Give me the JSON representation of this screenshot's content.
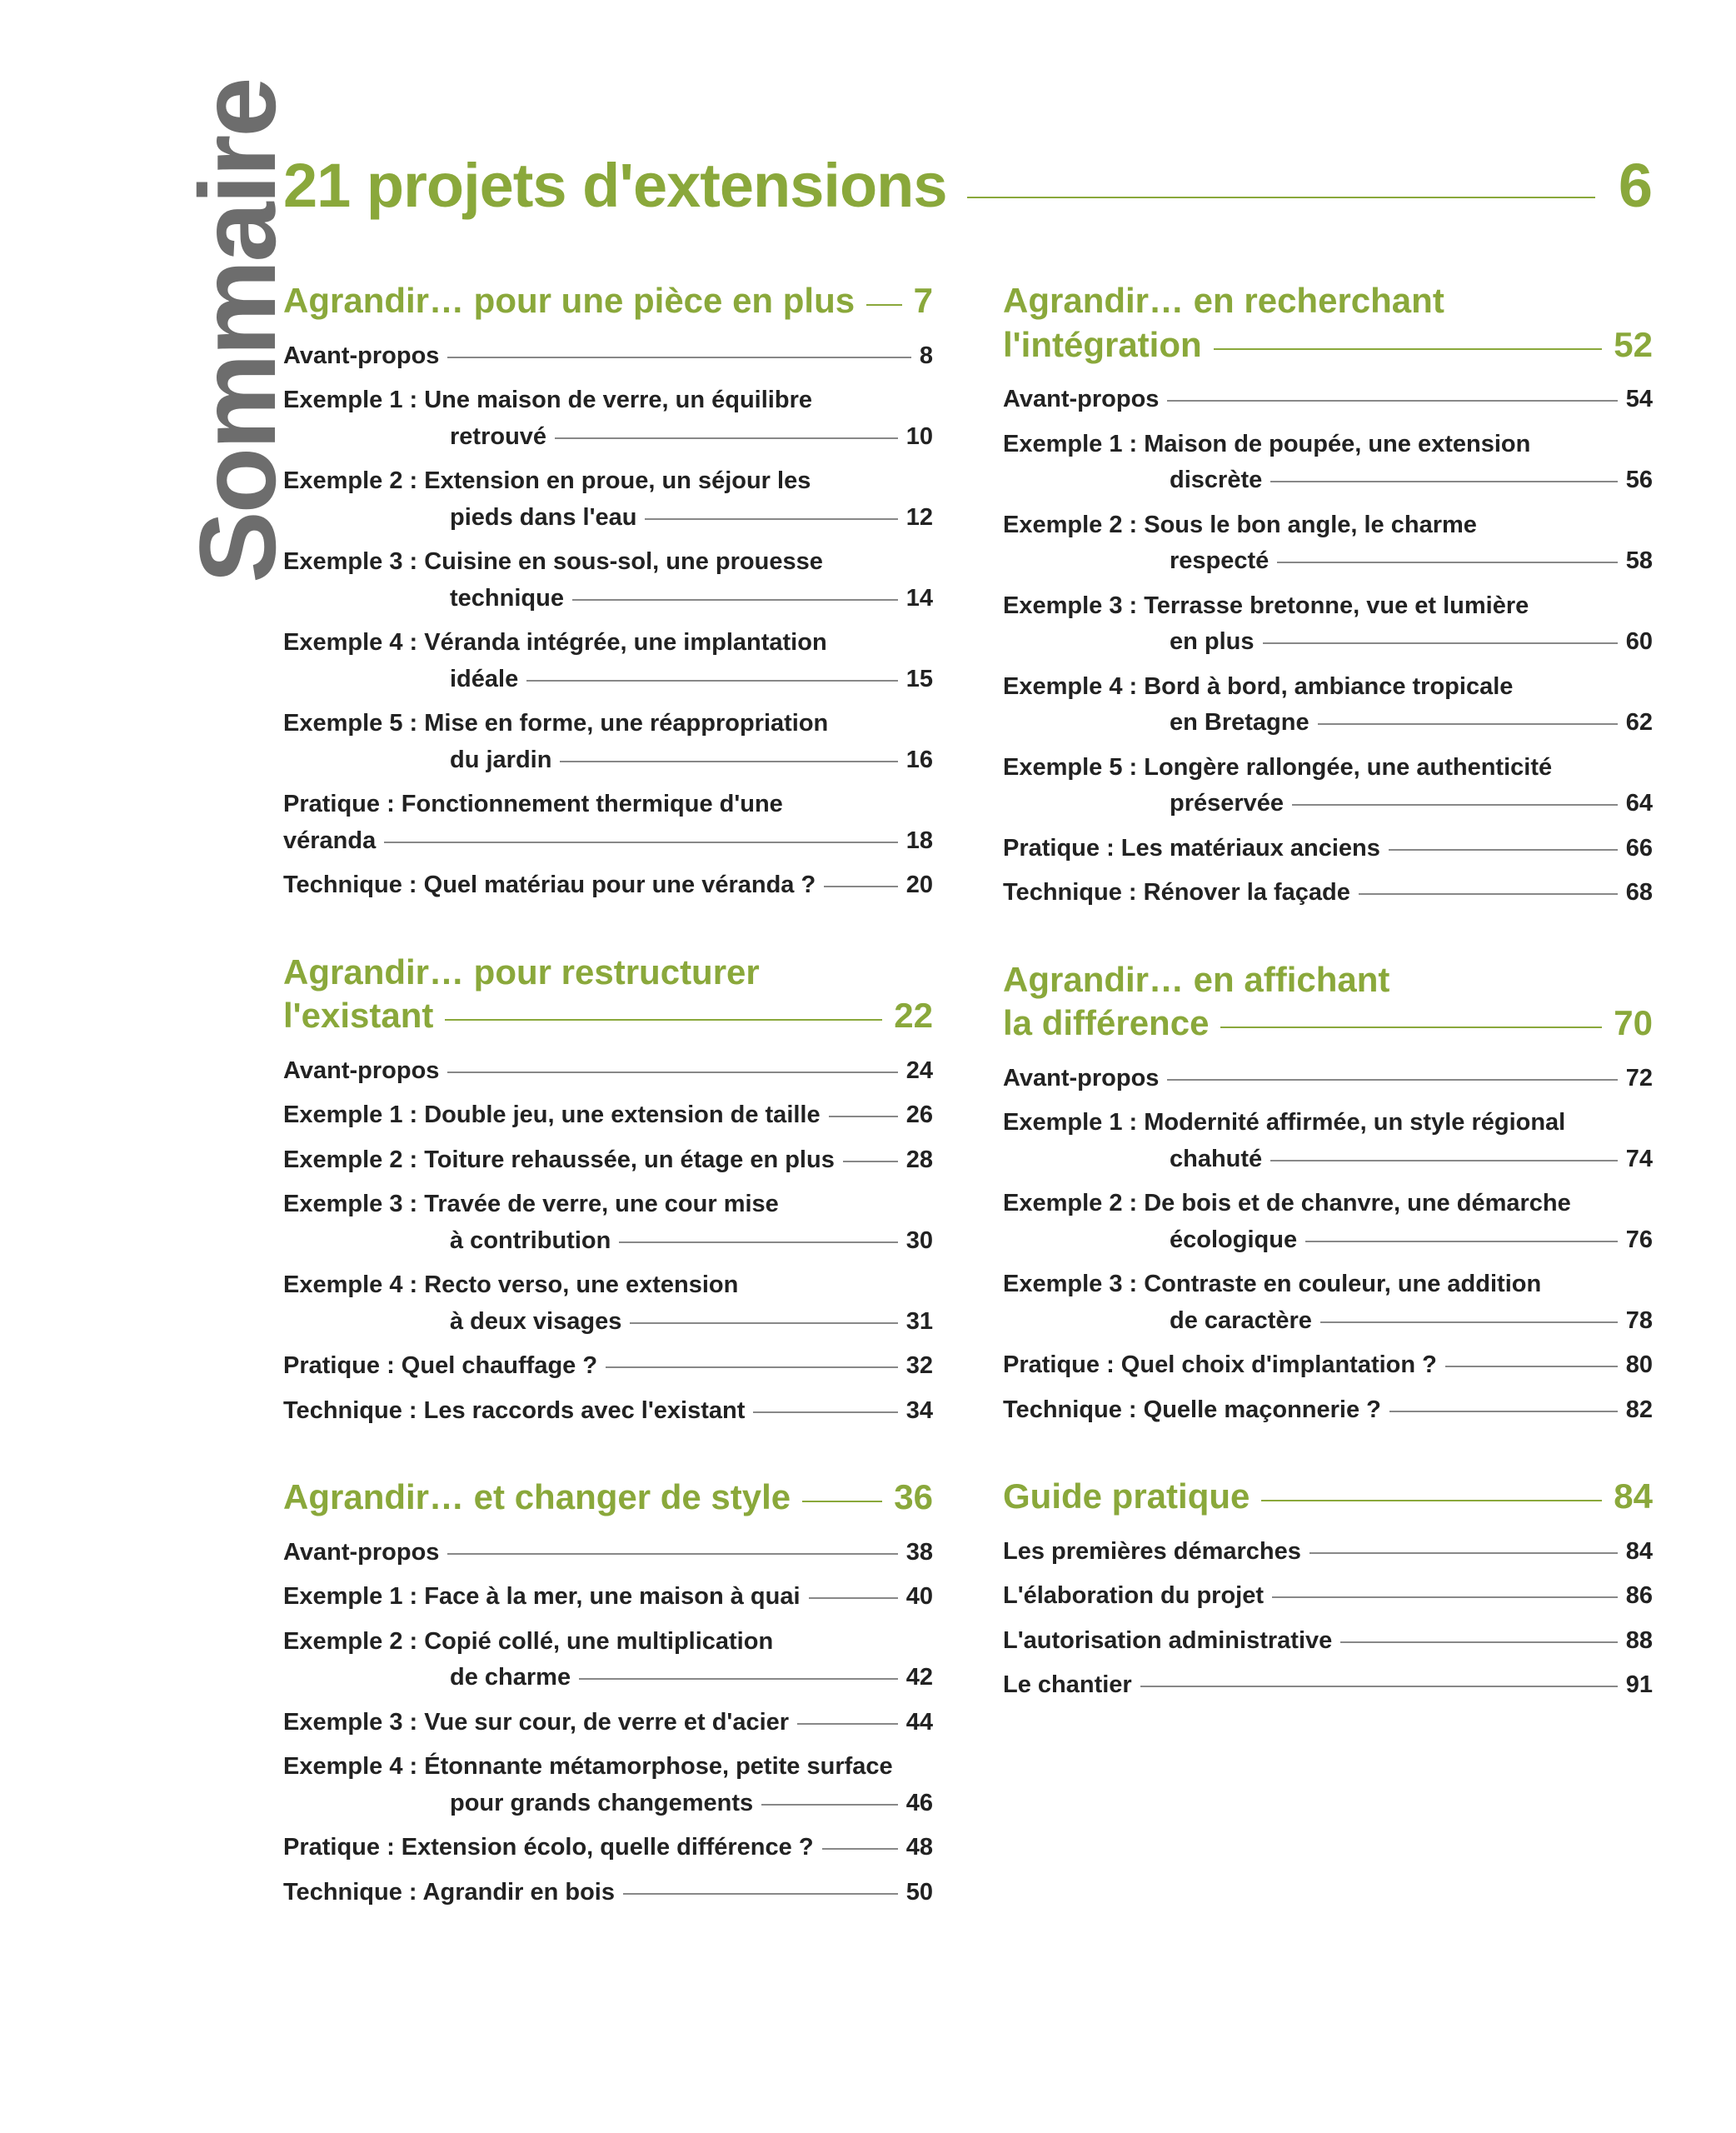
{
  "colors": {
    "olive": "#8aa83b",
    "gray": "#6d6d6d",
    "black": "#222222",
    "line": "#888888",
    "background": "#ffffff"
  },
  "rotated_title": "Sommaire",
  "main": {
    "title": "21 projets d'extensions",
    "page": "6"
  },
  "columns": [
    {
      "sections": [
        {
          "title": "Agrandir… pour une pièce en plus",
          "page": "7",
          "multiline": false,
          "entries": [
            {
              "lines": [
                "Avant-propos"
              ],
              "page": "8",
              "indent": 0
            },
            {
              "lines": [
                "Exemple 1 : Une maison de verre, un équilibre",
                "retrouvé"
              ],
              "page": "10",
              "indent": 200
            },
            {
              "lines": [
                "Exemple 2 : Extension en proue, un séjour les",
                "pieds dans l'eau"
              ],
              "page": "12",
              "indent": 200
            },
            {
              "lines": [
                "Exemple 3 : Cuisine en sous-sol, une prouesse",
                "technique"
              ],
              "page": "14",
              "indent": 200
            },
            {
              "lines": [
                "Exemple 4 : Véranda intégrée, une implantation",
                "idéale"
              ],
              "page": "15",
              "indent": 200
            },
            {
              "lines": [
                "Exemple 5 : Mise en forme, une réappropriation",
                "du jardin"
              ],
              "page": "16",
              "indent": 200
            },
            {
              "lines": [
                "Pratique : Fonctionnement thermique d'une",
                "véranda"
              ],
              "page": "18",
              "indent": 0
            },
            {
              "lines": [
                "Technique : Quel matériau pour une véranda ?"
              ],
              "page": "20",
              "indent": 0
            }
          ]
        },
        {
          "title": "Agrandir… pour restructurer\nl'existant",
          "page": "22",
          "multiline": true,
          "entries": [
            {
              "lines": [
                "Avant-propos"
              ],
              "page": "24",
              "indent": 0
            },
            {
              "lines": [
                "Exemple 1 : Double jeu, une extension de taille"
              ],
              "page": "26",
              "indent": 0
            },
            {
              "lines": [
                "Exemple 2 : Toiture rehaussée, un étage en plus"
              ],
              "page": "28",
              "indent": 0
            },
            {
              "lines": [
                "Exemple 3 : Travée de verre, une cour mise",
                "à contribution"
              ],
              "page": "30",
              "indent": 200
            },
            {
              "lines": [
                "Exemple 4 : Recto verso, une extension",
                "à deux visages"
              ],
              "page": "31",
              "indent": 200
            },
            {
              "lines": [
                "Pratique : Quel chauffage ?"
              ],
              "page": "32",
              "indent": 0
            },
            {
              "lines": [
                "Technique : Les raccords avec l'existant"
              ],
              "page": "34",
              "indent": 0
            }
          ]
        },
        {
          "title": "Agrandir… et changer de style",
          "page": "36",
          "multiline": false,
          "entries": [
            {
              "lines": [
                "Avant-propos"
              ],
              "page": "38",
              "indent": 0
            },
            {
              "lines": [
                "Exemple 1 : Face à la mer, une maison à quai"
              ],
              "page": "40",
              "indent": 0
            },
            {
              "lines": [
                "Exemple 2 : Copié collé, une multiplication",
                "de charme"
              ],
              "page": "42",
              "indent": 200
            },
            {
              "lines": [
                "Exemple 3 : Vue sur cour, de verre et d'acier"
              ],
              "page": "44",
              "indent": 0
            },
            {
              "lines": [
                "Exemple 4 : Étonnante métamorphose, petite surface",
                "pour grands changements"
              ],
              "page": "46",
              "indent": 200
            },
            {
              "lines": [
                "Pratique : Extension écolo, quelle différence ?"
              ],
              "page": "48",
              "indent": 0
            },
            {
              "lines": [
                "Technique : Agrandir en bois"
              ],
              "page": "50",
              "indent": 0
            }
          ]
        }
      ]
    },
    {
      "sections": [
        {
          "title": "Agrandir… en recherchant\nl'intégration",
          "page": "52",
          "multiline": true,
          "entries": [
            {
              "lines": [
                "Avant-propos"
              ],
              "page": "54",
              "indent": 0
            },
            {
              "lines": [
                "Exemple 1 : Maison de poupée, une extension",
                "discrète"
              ],
              "page": "56",
              "indent": 200
            },
            {
              "lines": [
                "Exemple 2 : Sous le bon angle, le charme",
                "respecté"
              ],
              "page": "58",
              "indent": 200
            },
            {
              "lines": [
                "Exemple 3 : Terrasse bretonne, vue et lumière",
                "en plus"
              ],
              "page": "60",
              "indent": 200
            },
            {
              "lines": [
                "Exemple 4 : Bord à bord, ambiance tropicale",
                "en Bretagne"
              ],
              "page": "62",
              "indent": 200
            },
            {
              "lines": [
                "Exemple 5 : Longère rallongée, une authenticité",
                "préservée"
              ],
              "page": "64",
              "indent": 200
            },
            {
              "lines": [
                "Pratique : Les matériaux anciens"
              ],
              "page": "66",
              "indent": 0
            },
            {
              "lines": [
                "Technique : Rénover la façade"
              ],
              "page": "68",
              "indent": 0
            }
          ]
        },
        {
          "title": "Agrandir… en affichant\nla différence",
          "page": "70",
          "multiline": true,
          "entries": [
            {
              "lines": [
                "Avant-propos"
              ],
              "page": "72",
              "indent": 0
            },
            {
              "lines": [
                "Exemple 1 : Modernité affirmée, un style régional",
                "chahuté"
              ],
              "page": "74",
              "indent": 200
            },
            {
              "lines": [
                "Exemple 2 : De bois et de chanvre, une démarche",
                "écologique"
              ],
              "page": "76",
              "indent": 200
            },
            {
              "lines": [
                "Exemple 3 : Contraste en couleur, une addition",
                "de caractère"
              ],
              "page": "78",
              "indent": 200
            },
            {
              "lines": [
                "Pratique : Quel choix d'implantation ?"
              ],
              "page": "80",
              "indent": 0
            },
            {
              "lines": [
                "Technique : Quelle maçonnerie ?"
              ],
              "page": "82",
              "indent": 0
            }
          ]
        },
        {
          "title": "Guide pratique",
          "page": "84",
          "multiline": false,
          "entries": [
            {
              "lines": [
                "Les premières démarches"
              ],
              "page": "84",
              "indent": 0
            },
            {
              "lines": [
                "L'élaboration du projet"
              ],
              "page": "86",
              "indent": 0
            },
            {
              "lines": [
                "L'autorisation administrative"
              ],
              "page": "88",
              "indent": 0
            },
            {
              "lines": [
                "Le chantier"
              ],
              "page": "91",
              "indent": 0
            }
          ]
        }
      ]
    }
  ]
}
